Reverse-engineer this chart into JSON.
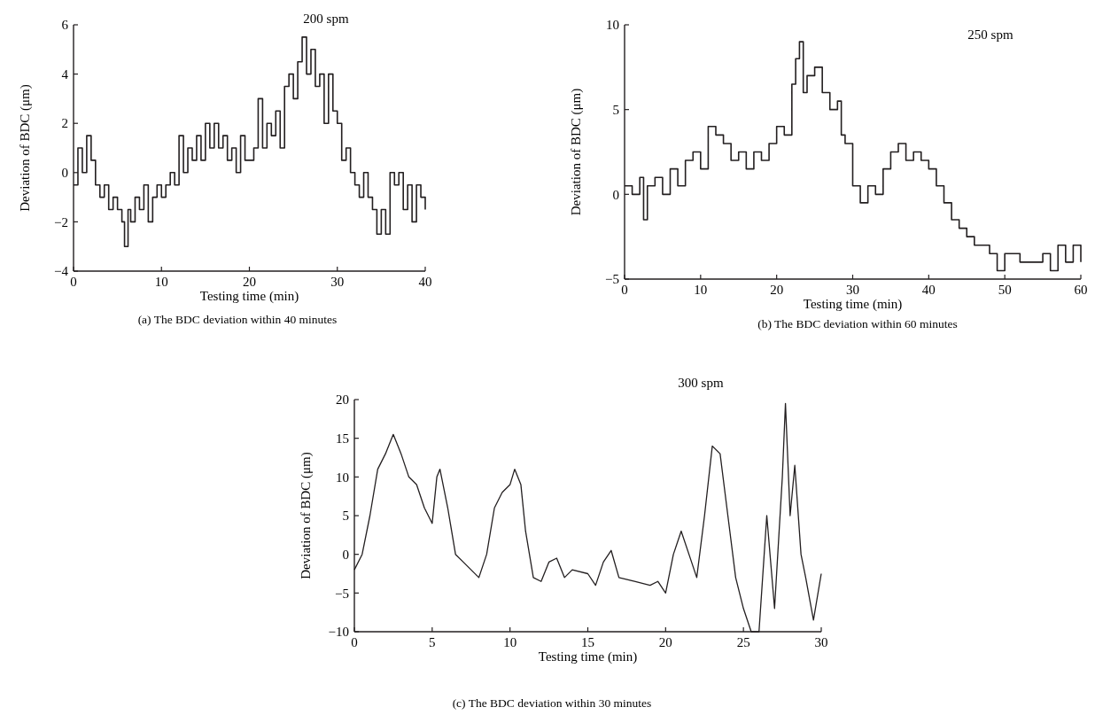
{
  "chart_data": [
    {
      "type": "step",
      "xlabel": "Testing time (min)",
      "ylabel": "Deviation of BDC (μm)",
      "annotations": [
        "200 spm",
        "(a)  The BDC deviation within 40 minutes"
      ],
      "xlim": [
        0,
        40
      ],
      "ylim": [
        -4,
        6
      ],
      "xticks": [
        0,
        10,
        20,
        30,
        40
      ],
      "yticks": [
        -4,
        -2,
        0,
        2,
        4,
        6
      ],
      "grid": false,
      "marker": "none",
      "line_style": "solid",
      "series": [
        {
          "color": "#231f20",
          "x": [
            0,
            0.5,
            1,
            1.5,
            2,
            2.5,
            3,
            3.5,
            4,
            4.5,
            5,
            5.5,
            5.8,
            6.2,
            6.5,
            7,
            7.5,
            8,
            8.5,
            9,
            9.5,
            10,
            10.5,
            11,
            11.5,
            12,
            12.5,
            13,
            13.5,
            14,
            14.5,
            15,
            15.5,
            16,
            16.5,
            17,
            17.5,
            18,
            18.5,
            19,
            19.5,
            20,
            20.5,
            21,
            21.5,
            22,
            22.5,
            23,
            23.5,
            24,
            24.5,
            25,
            25.5,
            26,
            26.5,
            27,
            27.5,
            28,
            28.5,
            29,
            29.5,
            30,
            30.5,
            31,
            31.5,
            32,
            32.5,
            33,
            33.5,
            34,
            34.5,
            35,
            35.5,
            36,
            36.5,
            37,
            37.5,
            38,
            38.5,
            39,
            39.5,
            40
          ],
          "values": [
            -0.5,
            1,
            0,
            1.5,
            0.5,
            -0.5,
            -1,
            -0.5,
            -1.5,
            -1,
            -1.5,
            -2,
            -3,
            -1.5,
            -2,
            -1,
            -1.5,
            -0.5,
            -2,
            -1,
            -0.5,
            -1,
            -0.5,
            0,
            -0.5,
            1.5,
            0,
            1,
            0.5,
            1.5,
            0.5,
            2,
            1,
            2,
            1,
            1.5,
            0.5,
            1,
            0,
            1.5,
            0.5,
            0.5,
            1,
            3,
            1,
            2,
            1.5,
            2.5,
            1,
            3.5,
            4,
            3,
            4.5,
            5.5,
            4,
            5,
            3.5,
            4,
            2,
            4,
            2.5,
            2,
            0.5,
            1,
            0,
            -0.5,
            -1,
            0,
            -1,
            -1.5,
            -2.5,
            -1.5,
            -2.5,
            0,
            -0.5,
            0,
            -1.5,
            -0.5,
            -2,
            -0.5,
            -1,
            -1.5
          ]
        }
      ]
    },
    {
      "type": "step",
      "xlabel": "Testing time (min)",
      "ylabel": "Deviation of BDC (μm)",
      "annotations": [
        "250 spm",
        "(b)  The BDC deviation within 60 minutes"
      ],
      "xlim": [
        0,
        60
      ],
      "ylim": [
        -5,
        10
      ],
      "xticks": [
        0,
        10,
        20,
        30,
        40,
        50,
        60
      ],
      "yticks": [
        -5,
        0,
        5,
        10
      ],
      "grid": false,
      "marker": "none",
      "line_style": "solid",
      "series": [
        {
          "color": "#231f20",
          "x": [
            0,
            1,
            2,
            2.5,
            3,
            4,
            5,
            6,
            7,
            8,
            9,
            10,
            10.5,
            11,
            12,
            13,
            14,
            15,
            16,
            17,
            18,
            19,
            20,
            21,
            22,
            22.5,
            23,
            23.5,
            24,
            25,
            26,
            27,
            28,
            28.5,
            29,
            30,
            31,
            32,
            33,
            34,
            35,
            36,
            37,
            38,
            39,
            40,
            41,
            42,
            43,
            44,
            45,
            46,
            47,
            48,
            49,
            50,
            51,
            52,
            53,
            54,
            55,
            56,
            57,
            58,
            59,
            60
          ],
          "values": [
            0.5,
            0,
            1,
            -1.5,
            0.5,
            1,
            0,
            1.5,
            0.5,
            2,
            2.5,
            1.5,
            1.5,
            4,
            3.5,
            3,
            2,
            2.5,
            1.5,
            2.5,
            2,
            3,
            4,
            3.5,
            6.5,
            8,
            9,
            6,
            7,
            7.5,
            6,
            5,
            5.5,
            3.5,
            3,
            0.5,
            -0.5,
            0.5,
            0,
            1.5,
            2.5,
            3,
            2,
            2.5,
            2,
            1.5,
            0.5,
            -0.5,
            -1.5,
            -2,
            -2.5,
            -3,
            -3,
            -3.5,
            -4.5,
            -3.5,
            -3.5,
            -4,
            -4,
            -4,
            -3.5,
            -4.5,
            -3,
            -4,
            -3,
            -4
          ]
        }
      ]
    },
    {
      "type": "line",
      "xlabel": "Testing time (min)",
      "ylabel": "Deviation of BDC (μm)",
      "annotations": [
        "300 spm",
        "(c)  The BDC deviation within 30 minutes"
      ],
      "xlim": [
        0,
        30
      ],
      "ylim": [
        -10,
        20
      ],
      "xticks": [
        0,
        5,
        10,
        15,
        20,
        25,
        30
      ],
      "yticks": [
        -10,
        -5,
        0,
        5,
        10,
        15,
        20
      ],
      "grid": false,
      "marker": "none",
      "line_style": "solid",
      "series": [
        {
          "color": "#231f20",
          "x": [
            0,
            0.5,
            1,
            1.5,
            2,
            2.5,
            3,
            3.5,
            4,
            4.5,
            5,
            5.3,
            5.5,
            6,
            6.5,
            7,
            7.5,
            8,
            8.5,
            9,
            9.5,
            10,
            10.3,
            10.7,
            11,
            11.5,
            12,
            12.5,
            13,
            13.5,
            14,
            15,
            15.5,
            16,
            16.5,
            17,
            18,
            19,
            19.5,
            20,
            20.5,
            21,
            21.5,
            22,
            22.5,
            23,
            23.5,
            24,
            24.5,
            25,
            25.5,
            26,
            26.5,
            27,
            27.5,
            27.7,
            28,
            28.3,
            28.7,
            29,
            29.5,
            30
          ],
          "values": [
            -2,
            0,
            5,
            11,
            13,
            15.5,
            13,
            10,
            9,
            6,
            4,
            10,
            11,
            6,
            0,
            -1,
            -2,
            -3,
            0,
            6,
            8,
            9,
            11,
            9,
            3,
            -3,
            -3.5,
            -1,
            -0.5,
            -3,
            -2,
            -2.5,
            -4,
            -1,
            0.5,
            -3,
            -3.5,
            -4,
            -3.5,
            -5,
            0,
            3,
            0,
            -3,
            5,
            14,
            13,
            5,
            -3,
            -7,
            -10,
            -10,
            5,
            -7,
            10,
            19.5,
            5,
            11.5,
            0,
            -3,
            -8.5,
            -2.5
          ]
        }
      ]
    }
  ]
}
